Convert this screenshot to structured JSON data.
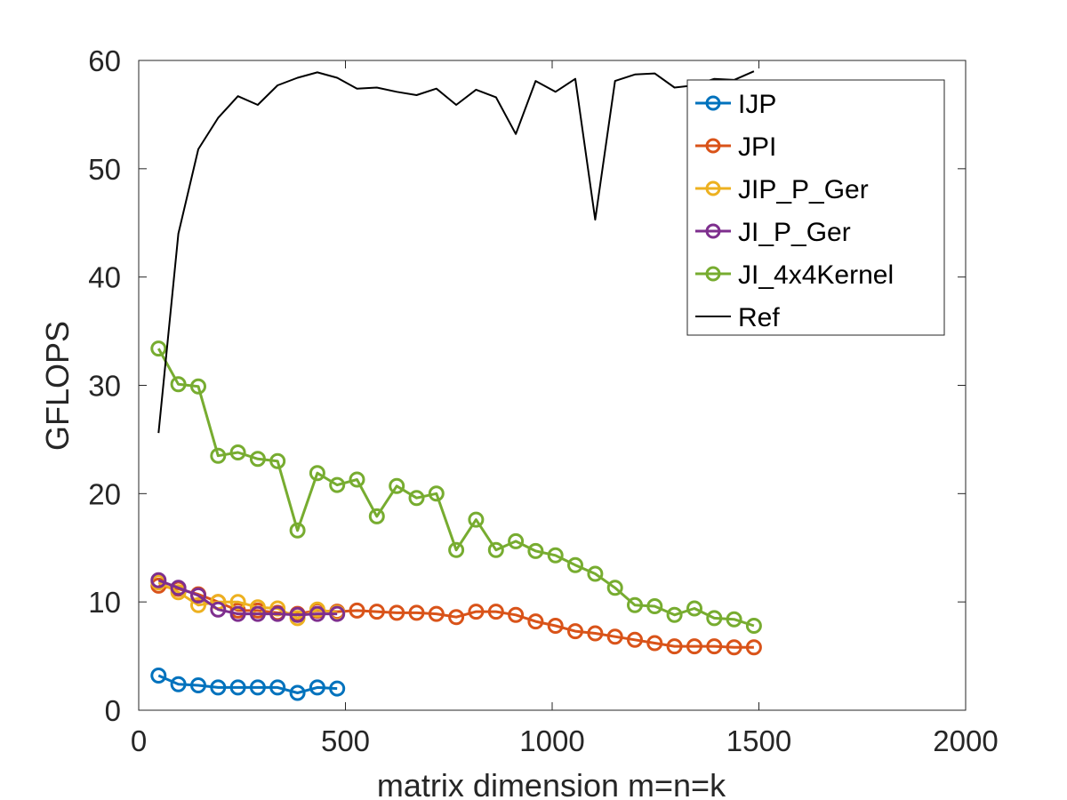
{
  "chart_data": {
    "type": "line",
    "title": "",
    "xlabel": "matrix dimension m=n=k",
    "ylabel": "GFLOPS",
    "xlim": [
      0,
      2000
    ],
    "ylim": [
      0,
      60
    ],
    "xticks": [
      0,
      500,
      1000,
      1500,
      2000
    ],
    "yticks": [
      0,
      10,
      20,
      30,
      40,
      50,
      60
    ],
    "xtick_labels": [
      "0",
      "500",
      "1000",
      "1500",
      "2000"
    ],
    "ytick_labels": [
      "0",
      "10",
      "20",
      "30",
      "40",
      "50",
      "60"
    ],
    "grid": false,
    "legend_position": "top-right",
    "series": [
      {
        "name": "IJP",
        "color": "#0072BD",
        "marker": "circle",
        "x": [
          48,
          96,
          144,
          192,
          240,
          288,
          336,
          384,
          432,
          480
        ],
        "y": [
          3.2,
          2.4,
          2.3,
          2.1,
          2.1,
          2.1,
          2.1,
          1.6,
          2.1,
          2.0
        ]
      },
      {
        "name": "JPI",
        "color": "#D95319",
        "marker": "circle",
        "x": [
          48,
          96,
          144,
          192,
          240,
          288,
          336,
          384,
          432,
          480,
          528,
          576,
          624,
          672,
          720,
          768,
          816,
          864,
          912,
          960,
          1008,
          1056,
          1104,
          1152,
          1200,
          1248,
          1296,
          1344,
          1392,
          1440,
          1488
        ],
        "y": [
          11.5,
          11.2,
          10.7,
          10.0,
          9.2,
          9.2,
          9.0,
          8.9,
          9.2,
          9.1,
          9.2,
          9.1,
          9.0,
          9.0,
          8.9,
          8.6,
          9.1,
          9.1,
          8.8,
          8.2,
          7.8,
          7.3,
          7.1,
          6.8,
          6.5,
          6.2,
          5.9,
          5.9,
          5.9,
          5.8,
          5.8
        ]
      },
      {
        "name": "JIP_P_Ger",
        "color": "#EDB120",
        "marker": "circle",
        "x": [
          48,
          96,
          144,
          192,
          240,
          288,
          336,
          384,
          432,
          480
        ],
        "y": [
          11.8,
          10.9,
          9.7,
          10.0,
          10.0,
          9.5,
          9.4,
          8.5,
          9.3,
          9.0
        ]
      },
      {
        "name": "JI_P_Ger",
        "color": "#7E2F8E",
        "marker": "circle",
        "x": [
          48,
          96,
          144,
          192,
          240,
          288,
          336,
          384,
          432,
          480
        ],
        "y": [
          12.0,
          11.3,
          10.6,
          9.3,
          8.9,
          8.9,
          8.9,
          8.8,
          8.9,
          8.9
        ]
      },
      {
        "name": "JI_4x4Kernel",
        "color": "#77AC30",
        "marker": "circle",
        "x": [
          48,
          96,
          144,
          192,
          240,
          288,
          336,
          384,
          432,
          480,
          528,
          576,
          624,
          672,
          720,
          768,
          816,
          864,
          912,
          960,
          1008,
          1056,
          1104,
          1152,
          1200,
          1248,
          1296,
          1344,
          1392,
          1440,
          1488
        ],
        "y": [
          33.4,
          30.1,
          29.9,
          23.5,
          23.8,
          23.2,
          23.0,
          16.6,
          21.9,
          20.8,
          21.3,
          17.9,
          20.7,
          19.6,
          20.0,
          14.8,
          17.6,
          14.8,
          15.6,
          14.7,
          14.3,
          13.4,
          12.6,
          11.3,
          9.7,
          9.6,
          8.8,
          9.4,
          8.5,
          8.4,
          7.8
        ]
      },
      {
        "name": "Ref",
        "color": "#000000",
        "marker": "none",
        "x": [
          48,
          96,
          144,
          192,
          240,
          288,
          336,
          384,
          432,
          480,
          528,
          576,
          624,
          672,
          720,
          768,
          816,
          864,
          912,
          960,
          1008,
          1056,
          1104,
          1152,
          1200,
          1248,
          1296,
          1344,
          1392,
          1440,
          1488
        ],
        "y": [
          25.6,
          44.0,
          51.8,
          54.7,
          56.7,
          55.9,
          57.7,
          58.4,
          58.9,
          58.4,
          57.4,
          57.5,
          57.1,
          56.8,
          57.4,
          55.9,
          57.3,
          56.6,
          53.2,
          58.1,
          57.1,
          58.3,
          45.3,
          58.1,
          58.7,
          58.8,
          57.5,
          57.7,
          58.3,
          58.2,
          59.0
        ]
      }
    ]
  }
}
